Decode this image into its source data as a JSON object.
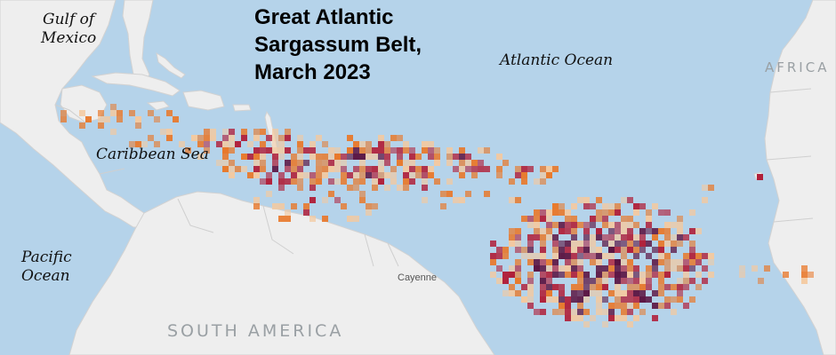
{
  "map": {
    "title": [
      "Great Atlantic",
      "Sargassum Belt,",
      "March 2023"
    ],
    "labels": {
      "gulf": [
        "Gulf of",
        "Mexico"
      ],
      "atlantic": "Atlantic Ocean",
      "caribbean": "Caribbean Sea",
      "pacific": [
        "Pacific",
        "Ocean"
      ],
      "africa": "AFRICA",
      "south_america": "SOUTH AMERICA",
      "cayenne": "Cayenne"
    },
    "colors": {
      "ocean": "#b5d3ea",
      "land": "#eeeeee",
      "density_low": "#f3c9a0",
      "density_mid": "#e8792c",
      "density_high": "#b0203a",
      "density_max": "#5a1240"
    }
  }
}
